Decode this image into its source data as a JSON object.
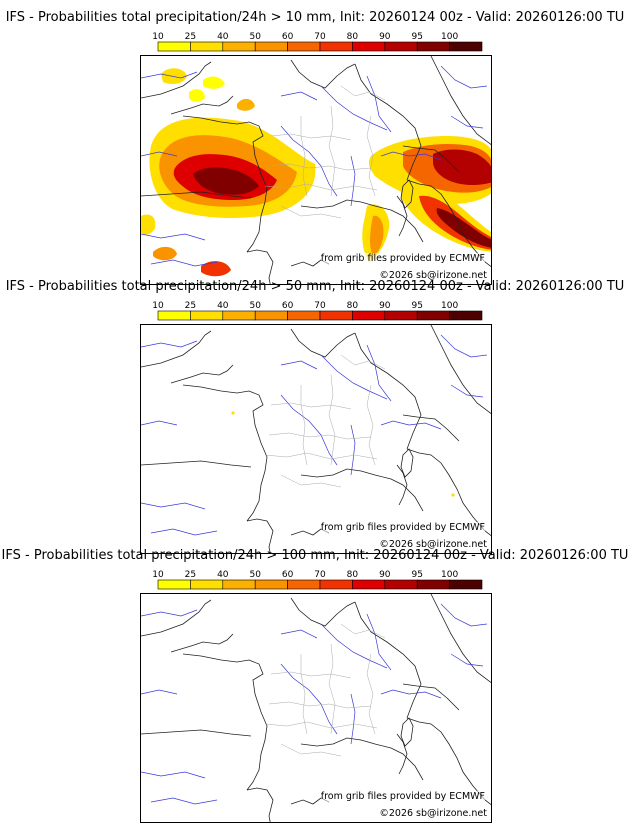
{
  "legend": {
    "thresholds": [
      "10",
      "25",
      "40",
      "50",
      "60",
      "70",
      "80",
      "90",
      "95",
      "100"
    ],
    "colors": [
      "#ffff00",
      "#ffdf00",
      "#fcb100",
      "#f99400",
      "#f56600",
      "#f03300",
      "#de0000",
      "#b30000",
      "#800000",
      "#4d0000"
    ]
  },
  "panels": [
    {
      "title": "IFS - Probabilities total precipitation/24h > 10 mm, Init: 20260124 00z - Valid: 20260126:00 TU",
      "credit_source": "from grib files provided by ECMWF",
      "credit_copyright": "©2026 sb@irizone.net"
    },
    {
      "title": "IFS - Probabilities total precipitation/24h > 50 mm, Init: 20260124 00z - Valid: 20260126:00 TU",
      "credit_source": "from grib files provided by ECMWF",
      "credit_copyright": "©2026 sb@irizone.net"
    },
    {
      "title": "IFS - Probabilities total precipitation/24h > 100 mm, Init: 20260124 00z - Valid: 20260126:00 TU",
      "credit_source": "from grib files provided by ECMWF",
      "credit_copyright": "©2026 sb@irizone.net"
    }
  ]
}
